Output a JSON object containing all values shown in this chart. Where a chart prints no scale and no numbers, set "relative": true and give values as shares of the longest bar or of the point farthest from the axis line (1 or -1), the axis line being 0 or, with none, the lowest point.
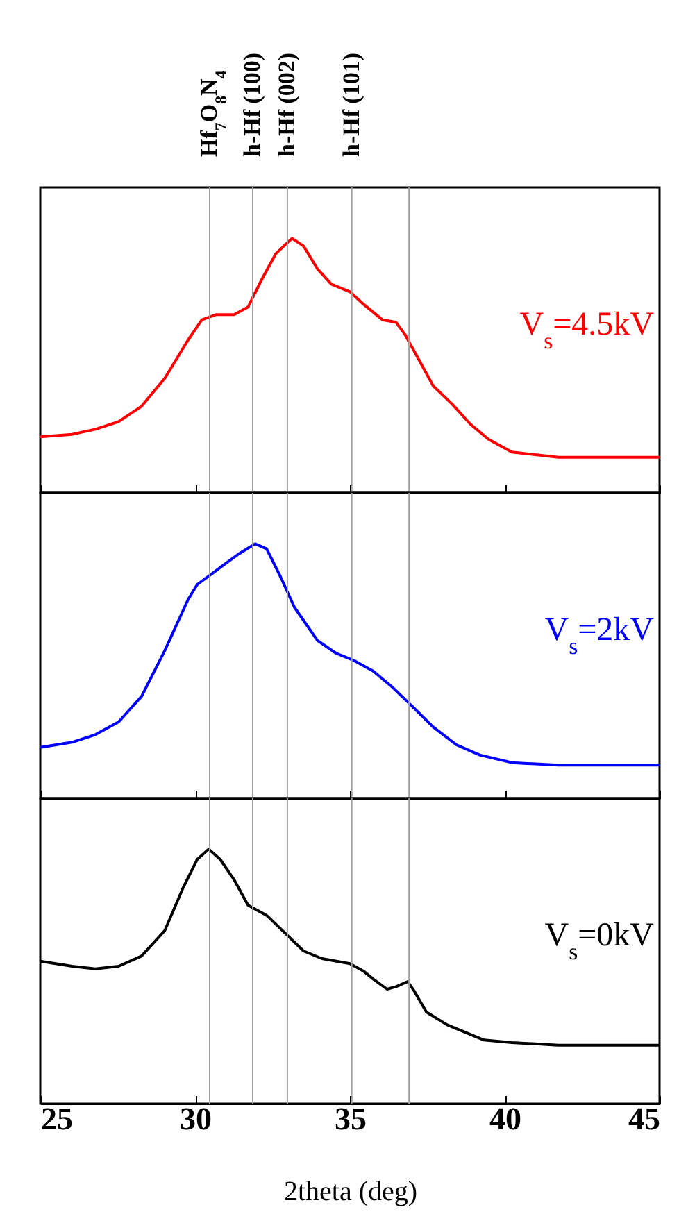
{
  "chart_data": [
    {
      "type": "line",
      "relative": true,
      "xlim": [
        25,
        45
      ],
      "xticks": [
        25,
        30,
        35,
        40,
        45
      ],
      "tick_labels": false,
      "x": [
        25,
        26.03,
        26.78,
        27.53,
        28.27,
        29.02,
        29.77,
        30.22,
        30.67,
        31.26,
        31.71,
        32.16,
        32.61,
        33.13,
        33.5,
        33.95,
        34.4,
        35,
        35.45,
        36.05,
        36.49,
        36.79,
        37.24,
        37.69,
        38.29,
        38.89,
        39.48,
        40.23,
        40.98,
        41.73,
        43.22,
        45
      ],
      "series": [
        {
          "name": "V$_{s}$=4.5kV",
          "color": "#ff0000",
          "values": [
            0.22,
            0.23,
            0.25,
            0.28,
            0.34,
            0.45,
            0.6,
            0.68,
            0.7,
            0.7,
            0.73,
            0.84,
            0.94,
            1,
            0.97,
            0.88,
            0.82,
            0.79,
            0.74,
            0.68,
            0.67,
            0.62,
            0.52,
            0.42,
            0.35,
            0.27,
            0.21,
            0.16,
            0.15,
            0.14,
            0.14,
            0.14
          ]
        }
      ],
      "ref_lines": [
        {
          "axis": "x",
          "value": 30.47,
          "label": "Hf$_{7}$O$_{8}$N$_{4}$",
          "color": "#a0a0a0"
        },
        {
          "axis": "x",
          "value": 31.86,
          "label": "h-Hf (100)",
          "color": "#a0a0a0"
        },
        {
          "axis": "x",
          "value": 32.98,
          "label": "h-Hf (002)",
          "color": "#a0a0a0"
        },
        {
          "axis": "x",
          "value": 35.06,
          "label": "h-Hf (101)",
          "color": "#a0a0a0"
        },
        {
          "axis": "x",
          "value": 36.91,
          "color": "#a0a0a0"
        }
      ]
    },
    {
      "type": "line",
      "relative": true,
      "xlim": [
        25,
        45
      ],
      "xticks": [
        25,
        30,
        35,
        40,
        45
      ],
      "tick_labels": false,
      "x": [
        25,
        26.03,
        26.78,
        27.53,
        28.27,
        29.02,
        29.77,
        30.07,
        30.52,
        30.96,
        31.41,
        31.94,
        32.31,
        32.76,
        33.21,
        33.95,
        34.55,
        35.15,
        35.75,
        36.34,
        36.94,
        37.69,
        38.44,
        39.19,
        40.23,
        41.73,
        43.22,
        45
      ],
      "series": [
        {
          "name": "V$_{s}$=2kV",
          "color": "#0000ff",
          "values": [
            0.2,
            0.22,
            0.25,
            0.3,
            0.4,
            0.58,
            0.78,
            0.84,
            0.88,
            0.92,
            0.96,
            1,
            0.98,
            0.87,
            0.75,
            0.62,
            0.57,
            0.54,
            0.5,
            0.44,
            0.37,
            0.28,
            0.21,
            0.17,
            0.14,
            0.13,
            0.13,
            0.13
          ]
        }
      ],
      "ref_lines": [
        {
          "axis": "x",
          "value": 30.47,
          "color": "#a0a0a0"
        },
        {
          "axis": "x",
          "value": 31.86,
          "color": "#a0a0a0"
        },
        {
          "axis": "x",
          "value": 32.98,
          "color": "#a0a0a0"
        },
        {
          "axis": "x",
          "value": 35.06,
          "color": "#a0a0a0"
        },
        {
          "axis": "x",
          "value": 36.91,
          "color": "#a0a0a0"
        }
      ]
    },
    {
      "type": "line",
      "relative": true,
      "xlim": [
        25,
        45
      ],
      "xticks": [
        25,
        30,
        35,
        40,
        45
      ],
      "tick_labels": "x",
      "xlabel": "2theta (deg)",
      "x": [
        25,
        26.03,
        26.78,
        27.53,
        28.27,
        29.02,
        29.62,
        30.07,
        30.44,
        30.81,
        31.26,
        31.71,
        32.31,
        32.91,
        33.5,
        34.1,
        35,
        35.45,
        35.75,
        36.2,
        36.49,
        36.87,
        37.09,
        37.47,
        38.14,
        39.33,
        40.23,
        41.73,
        43.22,
        45
      ],
      "series": [
        {
          "name": "V$_{s}$=0kV",
          "color": "#000000",
          "values": [
            0.56,
            0.54,
            0.53,
            0.54,
            0.58,
            0.68,
            0.85,
            0.96,
            1,
            0.96,
            0.88,
            0.78,
            0.74,
            0.67,
            0.6,
            0.57,
            0.55,
            0.52,
            0.49,
            0.45,
            0.46,
            0.48,
            0.44,
            0.36,
            0.31,
            0.25,
            0.24,
            0.23,
            0.23,
            0.23
          ]
        }
      ],
      "ref_lines": [
        {
          "axis": "x",
          "value": 30.47,
          "color": "#a0a0a0"
        },
        {
          "axis": "x",
          "value": 31.86,
          "color": "#a0a0a0"
        },
        {
          "axis": "x",
          "value": 32.98,
          "color": "#a0a0a0"
        },
        {
          "axis": "x",
          "value": 35.06,
          "color": "#a0a0a0"
        },
        {
          "axis": "x",
          "value": 36.91,
          "color": "#a0a0a0"
        }
      ]
    }
  ]
}
